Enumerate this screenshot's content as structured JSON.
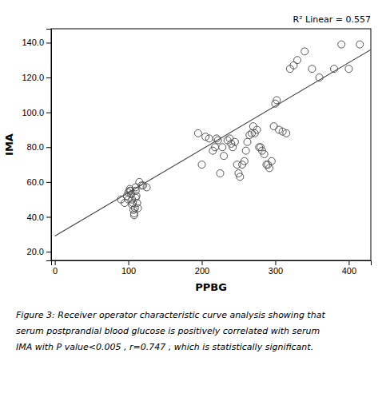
{
  "chart_data": {
    "type": "scatter",
    "xlabel": "PPBG",
    "ylabel": "IMA",
    "annotations": [
      "R² Linear = 0.557"
    ],
    "caption": [
      "Figure 3: Receiver operator characteristic curve analysis showing that",
      "serum postprandial blood glucose is positively correlated with serum",
      "IMA with P value<0.005 , r=0.747 , which is statistically significant."
    ],
    "xlim": [
      -5,
      430
    ],
    "ylim": [
      15,
      148
    ],
    "xticks": [
      0,
      100,
      200,
      300,
      400
    ],
    "yticks": [
      {
        "value": 20.0,
        "label": "20.0"
      },
      {
        "value": 40.0,
        "label": "40.0"
      },
      {
        "value": 60.0,
        "label": "60.0"
      },
      {
        "value": 80.0,
        "label": "80.0"
      },
      {
        "value": 100.0,
        "label": "100.0"
      },
      {
        "value": 120.0,
        "label": "120.0"
      },
      {
        "value": 140.0,
        "label": "140.0"
      }
    ],
    "grid": false,
    "series": [
      {
        "type": "scatter",
        "marker": "open-circle",
        "color": "#555555",
        "x": [
          90,
          95,
          98,
          100,
          100,
          102,
          102,
          103,
          104,
          105,
          105,
          106,
          107,
          108,
          108,
          109,
          110,
          110,
          110,
          111,
          112,
          113,
          115,
          118,
          120,
          125,
          195,
          200,
          205,
          210,
          215,
          218,
          220,
          222,
          225,
          228,
          230,
          235,
          238,
          240,
          242,
          245,
          248,
          250,
          252,
          255,
          258,
          260,
          262,
          265,
          268,
          270,
          272,
          275,
          278,
          280,
          282,
          285,
          288,
          290,
          292,
          295,
          298,
          300,
          302,
          305,
          310,
          315,
          320,
          325,
          330,
          340,
          350,
          360,
          380,
          390,
          400,
          415
        ],
        "values": [
          50,
          48,
          52,
          50,
          54,
          55,
          56,
          55,
          53,
          50,
          47,
          48,
          44,
          41,
          42,
          45,
          55,
          57,
          51,
          52,
          48,
          45,
          60,
          58,
          58,
          57,
          88,
          70,
          86,
          85,
          78,
          80,
          85,
          84,
          65,
          80,
          75,
          84,
          85,
          82,
          80,
          83,
          70,
          65,
          63,
          70,
          72,
          78,
          83,
          87,
          88,
          92,
          88,
          90,
          80,
          80,
          78,
          76,
          70,
          70,
          68,
          72,
          92,
          105,
          107,
          90,
          89,
          88,
          125,
          127,
          130,
          135,
          125,
          120,
          125,
          139,
          125,
          139
        ]
      },
      {
        "type": "line",
        "line_style": "solid",
        "color": "#444444",
        "x": [
          0,
          430
        ],
        "values": [
          29.0,
          136.0
        ]
      }
    ]
  }
}
